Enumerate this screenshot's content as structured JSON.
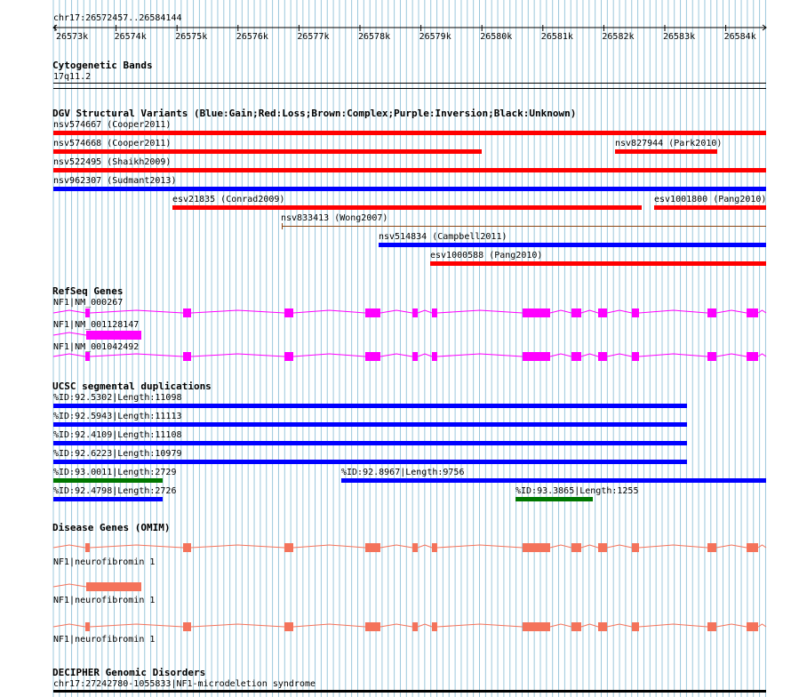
{
  "colors": {
    "grid": "#9cc8dc",
    "gain": "#0000ff",
    "loss": "#ff0000",
    "complex": "#8b4513",
    "gene": "#ff00ff",
    "segdup_green": "#007700",
    "omim": "#f4735b",
    "text": "#000000"
  },
  "ruler": {
    "region": "chr17:26572457..26584144",
    "ticks": [
      "26573k",
      "26574k",
      "26575k",
      "26576k",
      "26577k",
      "26578k",
      "26579k",
      "26580k",
      "26581k",
      "26582k",
      "26583k",
      "26584k"
    ]
  },
  "cytoband": {
    "title": "Cytogenetic Bands",
    "label": "17q11.2"
  },
  "dgv": {
    "title": "DGV Structural Variants (Blue:Gain;Red:Loss;Brown:Complex;Purple:Inversion;Black:Unknown)",
    "features": [
      {
        "label": "nsv574667 (Cooper2011)",
        "type": "loss"
      },
      {
        "label": "nsv574668 (Cooper2011)",
        "type": "loss"
      },
      {
        "label": "nsv827944 (Park2010)",
        "type": "loss"
      },
      {
        "label": "nsv522495 (Shaikh2009)",
        "type": "loss"
      },
      {
        "label": "nsv962307 (Sudmant2013)",
        "type": "gain"
      },
      {
        "label": "esv21835 (Conrad2009)",
        "type": "loss"
      },
      {
        "label": "esv1001800 (Pang2010)",
        "type": "loss"
      },
      {
        "label": "nsv833413 (Wong2007)",
        "type": "complex"
      },
      {
        "label": "nsv514834 (Campbell2011)",
        "type": "gain"
      },
      {
        "label": "esv1000588 (Pang2010)",
        "type": "loss"
      }
    ]
  },
  "refseq": {
    "title": "RefSeq Genes",
    "features": [
      {
        "label": "NF1|NM_000267"
      },
      {
        "label": "NF1|NM_001128147"
      },
      {
        "label": "NF1|NM_001042492"
      }
    ]
  },
  "segdup": {
    "title": "UCSC segmental duplications",
    "features": [
      {
        "label": "%ID:92.5302|Length:11098"
      },
      {
        "label": "%ID:92.5943|Length:11113"
      },
      {
        "label": "%ID:92.4109|Length:11108"
      },
      {
        "label": "%ID:92.6223|Length:10979"
      },
      {
        "label": "%ID:93.0011|Length:2729"
      },
      {
        "label": "%ID:92.8967|Length:9756"
      },
      {
        "label": "%ID:92.4798|Length:2726"
      },
      {
        "label": "%ID:93.3865|Length:1255"
      }
    ]
  },
  "omim": {
    "title": "Disease Genes (OMIM)",
    "features": [
      {
        "label": "NF1|neurofibromin 1"
      },
      {
        "label": "NF1|neurofibromin 1"
      },
      {
        "label": "NF1|neurofibromin 1"
      }
    ]
  },
  "decipher": {
    "title": "DECIPHER Genomic Disorders",
    "label": "chr17:27242780-1055833|NF1-microdeletion syndrome"
  }
}
